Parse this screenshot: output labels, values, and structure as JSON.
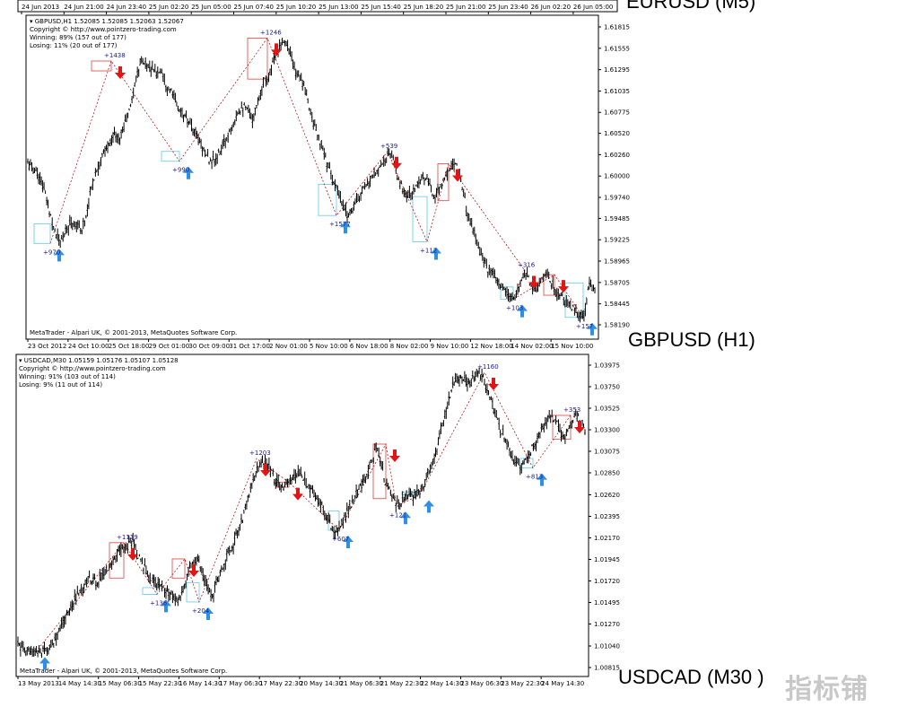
{
  "top_strip": {
    "caption": "EURUSD (M5)",
    "time_labels": [
      "24 Jun 2013",
      "24 Jun 21:00",
      "24 Jun 23:40",
      "25 Jun 02:20",
      "25 Jun 05:00",
      "25 Jun 07:40",
      "25 Jun 10:20",
      "25 Jun 13:00",
      "25 Jun 15:40",
      "25 Jun 18:20",
      "25 Jun 21:00",
      "25 Jun 23:40",
      "26 Jun 02:20",
      "26 Jun 05:00"
    ]
  },
  "charts": [
    {
      "caption": "GBPUSD (H1)",
      "header_line": "GBPUSD,H1  1.52085 1.52085 1.52063 1.52067",
      "copyright": "Copyright © http://www.pointzero-trading.com",
      "winning": "Winning: 89% (157 out of 177)",
      "losing": "Losing: 11% (20 out of 177)",
      "footer": "MetaTrader - Alpari UK, © 2001-2013, MetaQuotes Software Corp.",
      "price_labels": [
        "1.61815",
        "1.61555",
        "1.61295",
        "1.61035",
        "1.60775",
        "1.60520",
        "1.60260",
        "1.60000",
        "1.59740",
        "1.59485",
        "1.59225",
        "1.58965",
        "1.58705",
        "1.58445",
        "1.58190"
      ],
      "time_labels": [
        "23 Oct 2012",
        "24 Oct 10:00",
        "25 Oct 18:00",
        "29 Oct 01:00",
        "30 Oct 09:00",
        "31 Oct 17:00",
        "2 Nov 01:00",
        "5 Nov 10:00",
        "6 Nov 18:00",
        "8 Nov 02:00",
        "9 Nov 10:00",
        "12 Nov 18:00",
        "14 Nov 02:00",
        "15 Nov 10:00"
      ],
      "trade_labels": [
        "+970",
        "+1438",
        "+990",
        "+1246",
        "+1577",
        "+539",
        "+112",
        "+316",
        "+103",
        "+157"
      ],
      "price_path": [
        1.6015,
        1.601,
        1.6,
        1.5985,
        1.596,
        1.5935,
        1.5918,
        1.593,
        1.5945,
        1.594,
        1.5935,
        1.5955,
        1.599,
        1.601,
        1.6025,
        1.6035,
        1.605,
        1.6045,
        1.606,
        1.608,
        1.611,
        1.614,
        1.6138,
        1.6132,
        1.6125,
        1.613,
        1.611,
        1.61,
        1.6085,
        1.6075,
        1.6065,
        1.6055,
        1.6045,
        1.603,
        1.602,
        1.6018,
        1.603,
        1.6045,
        1.606,
        1.6075,
        1.6085,
        1.608,
        1.607,
        1.609,
        1.6115,
        1.612,
        1.614,
        1.616,
        1.6168,
        1.615,
        1.6125,
        1.612,
        1.61,
        1.6075,
        1.605,
        1.6035,
        1.6015,
        1.5995,
        1.598,
        1.596,
        1.5952,
        1.5965,
        1.5975,
        1.599,
        1.5992,
        1.6005,
        1.6015,
        1.602,
        1.603,
        1.6,
        1.5985,
        1.5975,
        1.598,
        1.5995,
        1.6,
        1.599,
        1.5975,
        1.5985,
        1.6,
        1.601,
        1.602,
        1.5995,
        1.596,
        1.594,
        1.592,
        1.59,
        1.5885,
        1.588,
        1.587,
        1.586,
        1.5855,
        1.585,
        1.587,
        1.5885,
        1.587,
        1.586,
        1.5875,
        1.588,
        1.587,
        1.5855,
        1.585,
        1.5845,
        1.5838,
        1.583,
        1.5828,
        1.587,
        1.586
      ]
    },
    {
      "caption": "USDCAD (M30 )",
      "header_line": "USDCAD,M30  1.05159 1.05176 1.05107 1.05128",
      "copyright": "Copyright © http://www.pointzero-trading.com",
      "winning": "Winning: 91% (103 out of 114)",
      "losing": "Losing: 9% (11 out of 114)",
      "footer": "MetaTrader - Alpari UK, © 2001-2013, MetaQuotes Software Corp.",
      "price_labels": [
        "1.03975",
        "1.03750",
        "1.03525",
        "1.03300",
        "1.03075",
        "1.02850",
        "1.02620",
        "1.02395",
        "1.02170",
        "1.01945",
        "1.01720",
        "1.01495",
        "1.01270",
        "1.01040",
        "1.00815"
      ],
      "time_labels": [
        "13 May 2013",
        "14 May 14:30",
        "15 May 06:30",
        "15 May 22:30",
        "16 May 14:30",
        "17 May 06:30",
        "17 May 22:30",
        "20 May 14:30",
        "21 May 06:30",
        "21 May 22:30",
        "22 May 14:30",
        "23 May 06:30",
        "23 May 22:30",
        "24 May 14:30"
      ],
      "trade_labels": [
        "+1119",
        "+136",
        "+204",
        "+1203",
        "+607",
        "+121",
        "+1160",
        "+813",
        "+353"
      ],
      "price_path": [
        1.0105,
        1.01,
        1.0098,
        1.0095,
        1.01,
        1.011,
        1.0125,
        1.014,
        1.0155,
        1.0165,
        1.0175,
        1.017,
        1.018,
        1.019,
        1.02,
        1.0208,
        1.0212,
        1.0195,
        1.018,
        1.017,
        1.0165,
        1.0158,
        1.015,
        1.016,
        1.0185,
        1.0195,
        1.0175,
        1.0155,
        1.0175,
        1.0195,
        1.021,
        1.023,
        1.0255,
        1.028,
        1.03,
        1.029,
        1.0275,
        1.027,
        1.028,
        1.0285,
        1.0275,
        1.0265,
        1.0255,
        1.024,
        1.0225,
        1.023,
        1.0245,
        1.026,
        1.0275,
        1.029,
        1.0315,
        1.028,
        1.026,
        1.025,
        1.0262,
        1.0258,
        1.0265,
        1.028,
        1.03,
        1.033,
        1.036,
        1.0385,
        1.0382,
        1.0378,
        1.039,
        1.038,
        1.036,
        1.0335,
        1.032,
        1.03,
        1.029,
        1.03,
        1.0315,
        1.033,
        1.0345,
        1.034,
        1.032,
        1.0335,
        1.0345,
        1.033
      ]
    }
  ],
  "watermark": "指标铺",
  "colors": {
    "buy_arrow": "#2f8fe6",
    "sell_arrow": "#e01616",
    "win_box": "#60c8e8",
    "loss_box": "#e04040",
    "zigzag": "#c01818",
    "trade_label": "#1a1a8c"
  }
}
